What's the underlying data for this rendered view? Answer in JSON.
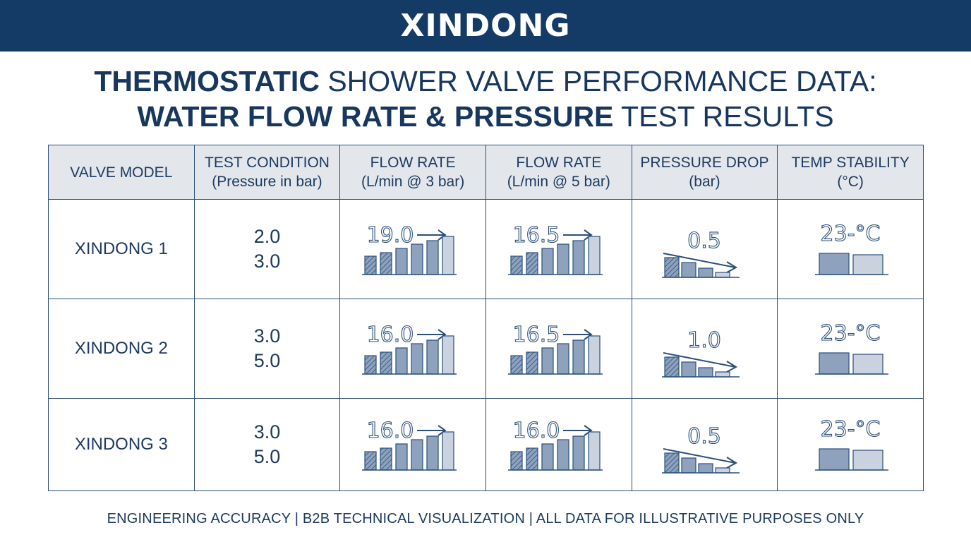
{
  "brand": "XINDONG",
  "title": {
    "line1_bold": "THERMOSTATIC",
    "line1_rest": " SHOWER VALVE PERFORMANCE DATA:",
    "line2_bold": "WATER FLOW RATE & PRESSURE",
    "line2_rest": " TEST RESULTS"
  },
  "headers": [
    {
      "l1": "VALVE MODEL",
      "l2": ""
    },
    {
      "l1": "TEST CONDITION",
      "l2": "(Pressure in bar)"
    },
    {
      "l1": "FLOW RATE",
      "l2": "(L/min @ 3 bar)"
    },
    {
      "l1": "FLOW RATE",
      "l2": "(L/min @ 5 bar)"
    },
    {
      "l1": "PRESSURE DROP",
      "l2": "(bar)"
    },
    {
      "l1": "TEMP STABILITY",
      "l2": "(°C)"
    }
  ],
  "rows": [
    {
      "model": "XINDONG 1",
      "cond1": "2.0",
      "cond2": "3.0",
      "flow3": "19.0",
      "flow5": "16.5",
      "drop": "0.5",
      "temp": "23-°C"
    },
    {
      "model": "XINDONG 2",
      "cond1": "3.0",
      "cond2": "5.0",
      "flow3": "16.0",
      "flow5": "16.5",
      "drop": "1.0",
      "temp": "23-°C"
    },
    {
      "model": "XINDONG 3",
      "cond1": "3.0",
      "cond2": "5.0",
      "flow3": "16.0",
      "flow5": "16.0",
      "drop": "0.5",
      "temp": "23-°C"
    }
  ],
  "colors": {
    "navy": "#143b66",
    "bar_dark": "#8ea2bd",
    "bar_light": "#c9d2de",
    "header_bg": "#e3e7ec"
  },
  "footer": "ENGINEERING ACCURACY | B2B TECHNICAL VISUALIZATION | ALL DATA FOR ILLUSTRATIVE PURPOSES ONLY"
}
